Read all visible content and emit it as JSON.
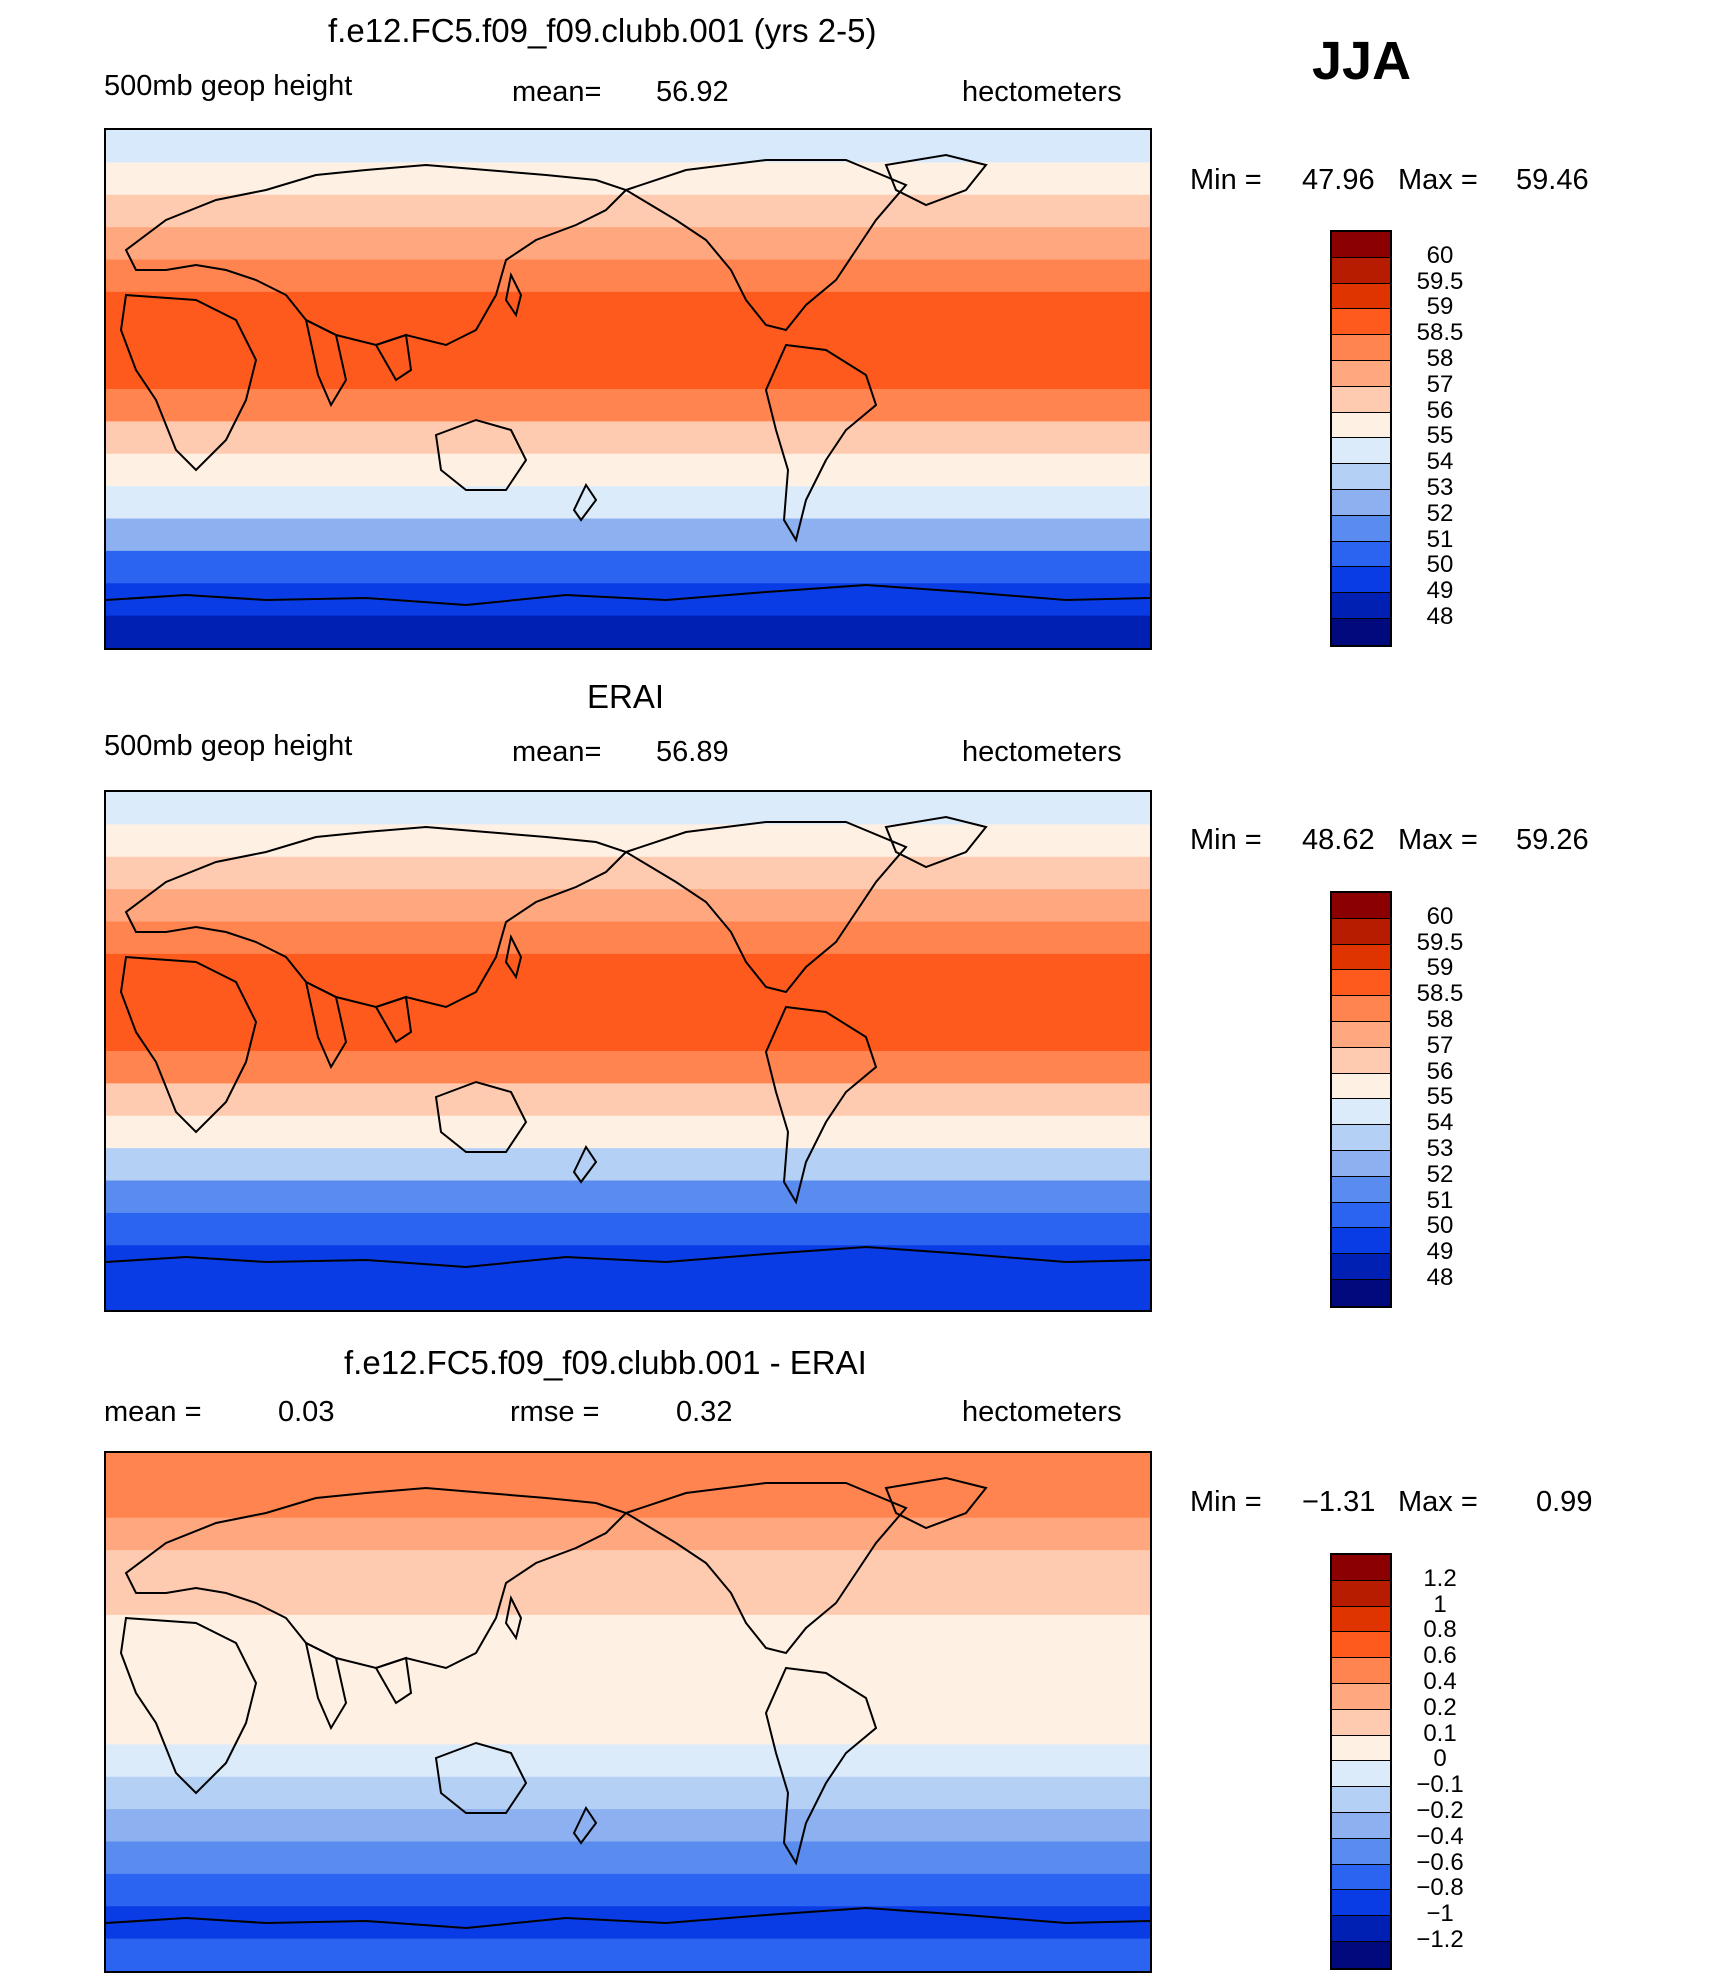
{
  "season": "JJA",
  "units": "hectometers",
  "panels": [
    {
      "title": "f.e12.FC5.f09_f09.clubb.001 (yrs 2-5)",
      "left_label": "500mb  geop  height",
      "stat_label": "mean=",
      "stat_value": "56.92",
      "units": "hectometers",
      "min_label": "Min  =",
      "min_value": "47.96",
      "max_label": "Max  =",
      "max_value": "59.46",
      "ticks": [
        "60",
        "59.5",
        "59",
        "58.5",
        "58",
        "57",
        "56",
        "55",
        "54",
        "53",
        "52",
        "51",
        "50",
        "49",
        "48"
      ],
      "colors": [
        "#8b0000",
        "#b81c00",
        "#e03400",
        "#ff5a1e",
        "#ff8450",
        "#ffa880",
        "#ffcbb0",
        "#fff0e4",
        "#dcebfa",
        "#b4d0f5",
        "#8cb0f0",
        "#5a8cf0",
        "#2a64f0",
        "#0a3ce6",
        "#0020b4",
        "#000a7d"
      ],
      "bands": [
        "#d8e9fb",
        "#fff0e4",
        "#ffcbb0",
        "#ffa880",
        "#ff8450",
        "#ff5a1e",
        "#ff5a1e",
        "#ff5a1e",
        "#ff8450",
        "#ffcbb0",
        "#fff0e4",
        "#dcebfa",
        "#8cb0f0",
        "#2a64f0",
        "#0a3ce6",
        "#0020b4"
      ]
    },
    {
      "title": "ERAI",
      "left_label": "500mb  geop  height",
      "stat_label": "mean=",
      "stat_value": "56.89",
      "units": "hectometers",
      "min_label": "Min  =",
      "min_value": "48.62",
      "max_label": "Max  =",
      "max_value": "59.26",
      "ticks": [
        "60",
        "59.5",
        "59",
        "58.5",
        "58",
        "57",
        "56",
        "55",
        "54",
        "53",
        "52",
        "51",
        "50",
        "49",
        "48"
      ],
      "colors": [
        "#8b0000",
        "#b81c00",
        "#e03400",
        "#ff5a1e",
        "#ff8450",
        "#ffa880",
        "#ffcbb0",
        "#fff0e4",
        "#dcebfa",
        "#b4d0f5",
        "#8cb0f0",
        "#5a8cf0",
        "#2a64f0",
        "#0a3ce6",
        "#0020b4",
        "#000a7d"
      ],
      "bands": [
        "#dcebfa",
        "#fff0e4",
        "#ffcbb0",
        "#ffa880",
        "#ff8450",
        "#ff5a1e",
        "#ff5a1e",
        "#ff5a1e",
        "#ff8450",
        "#ffcbb0",
        "#fff0e4",
        "#b4d0f5",
        "#5a8cf0",
        "#2a64f0",
        "#0a3ce6",
        "#0a3ce6"
      ]
    },
    {
      "title": "f.e12.FC5.f09_f09.clubb.001 - ERAI",
      "left_label": "mean  =",
      "left_value": "0.03",
      "stat_label": "rmse  =",
      "stat_value": "0.32",
      "units": "hectometers",
      "min_label": "Min  =",
      "min_value": "−1.31",
      "max_label": "Max  =",
      "max_value": "0.99",
      "ticks": [
        "1.2",
        "1",
        "0.8",
        "0.6",
        "0.4",
        "0.2",
        "0.1",
        "0",
        "−0.1",
        "−0.2",
        "−0.4",
        "−0.6",
        "−0.8",
        "−1",
        "−1.2"
      ],
      "colors": [
        "#8b0000",
        "#b81c00",
        "#e03400",
        "#ff5a1e",
        "#ff8450",
        "#ffa880",
        "#ffcbb0",
        "#fff0e4",
        "#dcebfa",
        "#b4d0f5",
        "#8cb0f0",
        "#5a8cf0",
        "#2a64f0",
        "#0a3ce6",
        "#0020b4",
        "#000a7d"
      ],
      "bands": [
        "#ff8450",
        "#ff8450",
        "#ffa880",
        "#ffcbb0",
        "#ffcbb0",
        "#fff0e4",
        "#fff0e4",
        "#fff0e4",
        "#fff0e4",
        "#dcebfa",
        "#b4d0f5",
        "#8cb0f0",
        "#5a8cf0",
        "#2a64f0",
        "#0a3ce6",
        "#2a64f0"
      ]
    }
  ]
}
